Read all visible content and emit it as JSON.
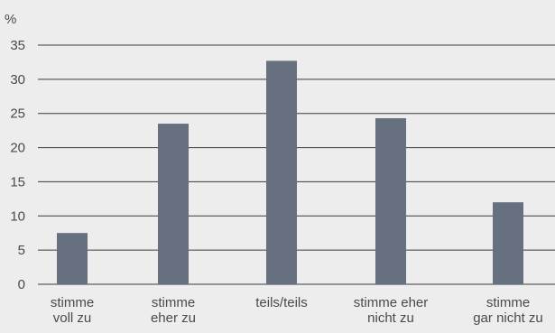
{
  "chart_data": {
    "type": "bar",
    "ylabel": "%",
    "ylim": [
      0,
      35
    ],
    "yticks": [
      0,
      5,
      10,
      15,
      20,
      25,
      30,
      35
    ],
    "grid": true,
    "categories": [
      [
        "stimme",
        "voll zu"
      ],
      [
        "stimme",
        "eher zu"
      ],
      [
        "teils/teils"
      ],
      [
        "stimme eher",
        "nicht zu"
      ],
      [
        "stimme",
        "gar nicht zu"
      ]
    ],
    "values": [
      7.5,
      23.5,
      32.7,
      24.3,
      12.0
    ],
    "bar_color": "#66707e",
    "grid_color": "#3a3a3a",
    "background": "#ededed"
  }
}
